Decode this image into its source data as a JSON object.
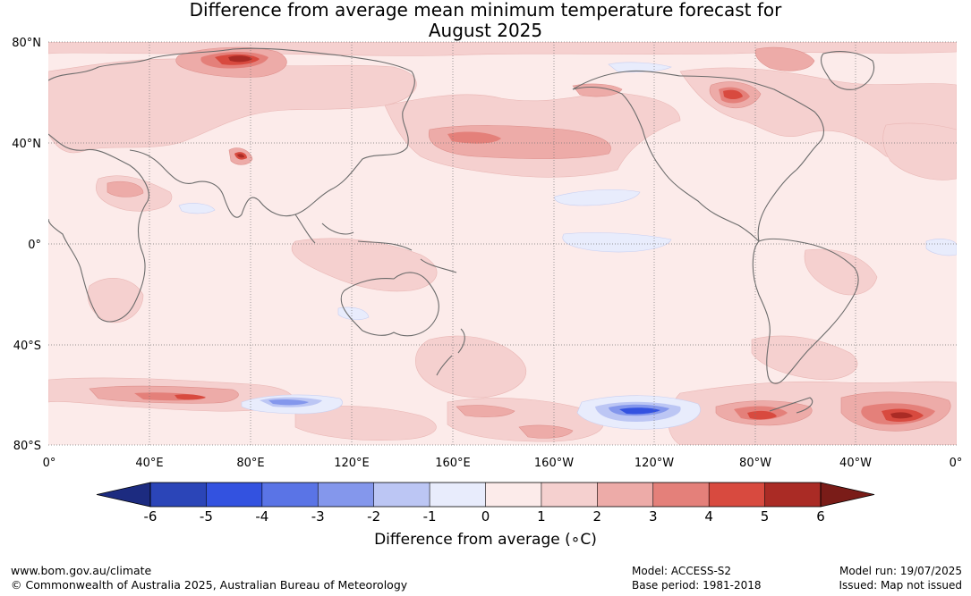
{
  "title": {
    "line1": "Difference from average mean minimum temperature forecast for",
    "line2": "August 2025"
  },
  "map": {
    "lat_labels": [
      "80°N",
      "40°N",
      "0°",
      "40°S",
      "80°S"
    ],
    "lon_labels": [
      "0°",
      "40°E",
      "80°E",
      "120°E",
      "160°E",
      "160°W",
      "120°W",
      "80°W",
      "40°W",
      "0°"
    ]
  },
  "colorbar": {
    "ticks": [
      "-6",
      "-5",
      "-4",
      "-3",
      "-2",
      "-1",
      "0",
      "1",
      "2",
      "3",
      "4",
      "5",
      "6"
    ],
    "colors": [
      "#1c2b80",
      "#2b45b8",
      "#3352e0",
      "#5a74e6",
      "#8497ec",
      "#bcc6f4",
      "#e8ecfc",
      "#fcebea",
      "#f5d0cf",
      "#edaba8",
      "#e4807a",
      "#d84a3f",
      "#aa2b25",
      "#7a1c18"
    ],
    "label": "Difference from average (∘C)"
  },
  "footer": {
    "website": "www.bom.gov.au/climate",
    "copyright": "© Commonwealth of Australia 2025, Australian Bureau of Meteorology",
    "model": "Model: ACCESS-S2",
    "base_period": "Base period: 1981-2018",
    "model_run": "Model run: 19/07/2025",
    "issued": "Issued: Map not issued"
  }
}
